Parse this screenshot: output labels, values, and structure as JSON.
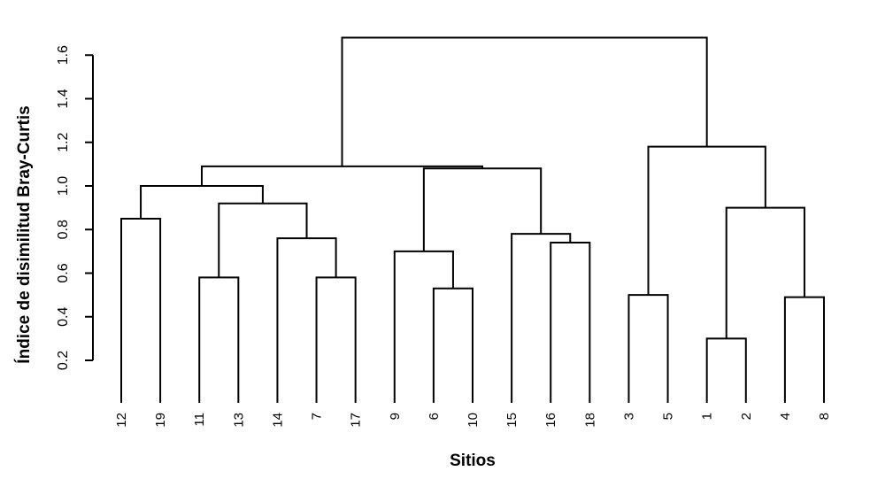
{
  "chart_data": {
    "type": "dendrogram",
    "title": "",
    "xlabel": "Sitios",
    "ylabel": "Índice de disimilitud Bray-Curtis",
    "yticks": [
      0.2,
      0.4,
      0.6,
      0.8,
      1.0,
      1.2,
      1.4,
      1.6
    ],
    "ytick_labels": [
      "0.2",
      "0.4",
      "0.6",
      "0.8",
      "1.0",
      "1.2",
      "1.4",
      "1.6"
    ],
    "leaves": [
      "12",
      "19",
      "11",
      "13",
      "14",
      "7",
      "17",
      "9",
      "6",
      "10",
      "15",
      "16",
      "18",
      "3",
      "5",
      "1",
      "2",
      "4",
      "8"
    ],
    "merges": [
      {
        "id": "m_1_2",
        "left": "1",
        "right": "2",
        "height": 0.3
      },
      {
        "id": "m_4_8",
        "left": "4",
        "right": "8",
        "height": 0.49
      },
      {
        "id": "m_3_5",
        "left": "3",
        "right": "5",
        "height": 0.5
      },
      {
        "id": "m_6_10",
        "left": "6",
        "right": "10",
        "height": 0.53
      },
      {
        "id": "m_11_13",
        "left": "11",
        "right": "13",
        "height": 0.58
      },
      {
        "id": "m_7_17",
        "left": "7",
        "right": "17",
        "height": 0.58
      },
      {
        "id": "m_9_6_10",
        "left": "9",
        "right": "m_6_10",
        "height": 0.7
      },
      {
        "id": "m_16_18",
        "left": "16",
        "right": "18",
        "height": 0.74
      },
      {
        "id": "m_14_7_17",
        "left": "14",
        "right": "m_7_17",
        "height": 0.76
      },
      {
        "id": "m_15_16_18",
        "left": "15",
        "right": "m_16_18",
        "height": 0.78
      },
      {
        "id": "m_12_19",
        "left": "12",
        "right": "19",
        "height": 0.85
      },
      {
        "id": "m_1_2_4_8",
        "left": "m_1_2",
        "right": "m_4_8",
        "height": 0.9
      },
      {
        "id": "m_11_14",
        "left": "m_11_13",
        "right": "m_14_7_17",
        "height": 0.92
      },
      {
        "id": "m_12_11",
        "left": "m_12_19",
        "right": "m_11_14",
        "height": 1.0
      },
      {
        "id": "m_9_15",
        "left": "m_9_6_10",
        "right": "m_15_16_18",
        "height": 1.08
      },
      {
        "id": "m_left",
        "left": "m_12_11",
        "right": "m_9_15",
        "height": 1.09
      },
      {
        "id": "m_right",
        "left": "m_3_5",
        "right": "m_1_2_4_8",
        "height": 1.18
      },
      {
        "id": "m_root",
        "left": "m_left",
        "right": "m_right",
        "height": 1.68
      }
    ]
  }
}
